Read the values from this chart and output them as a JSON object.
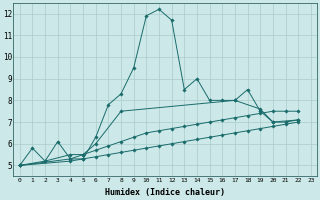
{
  "xlabel": "Humidex (Indice chaleur)",
  "bg_color": "#cce8e8",
  "grid_color": "#aacccc",
  "line_color": "#1a6b6b",
  "xlim": [
    -0.5,
    23.5
  ],
  "ylim": [
    4.5,
    12.5
  ],
  "yticks": [
    5,
    6,
    7,
    8,
    9,
    10,
    11,
    12
  ],
  "xticks": [
    0,
    1,
    2,
    3,
    4,
    5,
    6,
    7,
    8,
    9,
    10,
    11,
    12,
    13,
    14,
    15,
    16,
    17,
    18,
    19,
    20,
    21,
    22,
    23
  ],
  "series": [
    {
      "x": [
        0,
        1,
        2,
        3,
        4,
        5,
        6,
        7,
        8,
        9,
        10,
        11,
        12,
        13,
        14,
        15,
        16,
        17,
        18,
        19,
        20,
        21,
        22
      ],
      "y": [
        5.0,
        5.8,
        5.2,
        6.1,
        5.3,
        5.3,
        6.3,
        7.8,
        8.3,
        9.5,
        11.9,
        12.2,
        11.7,
        8.5,
        9.0,
        8.0,
        8.0,
        8.0,
        8.5,
        7.5,
        7.0,
        7.0,
        7.1
      ]
    },
    {
      "x": [
        0,
        2,
        4,
        5,
        6,
        8,
        17,
        19,
        20,
        22
      ],
      "y": [
        5.0,
        5.2,
        5.5,
        5.5,
        6.0,
        7.5,
        8.0,
        7.6,
        7.0,
        7.1
      ]
    },
    {
      "x": [
        0,
        4,
        5,
        6,
        7,
        8,
        9,
        10,
        11,
        12,
        13,
        14,
        15,
        16,
        17,
        18,
        19,
        20,
        21,
        22
      ],
      "y": [
        5.0,
        5.3,
        5.5,
        5.7,
        5.9,
        6.1,
        6.3,
        6.5,
        6.6,
        6.7,
        6.8,
        6.9,
        7.0,
        7.1,
        7.2,
        7.3,
        7.4,
        7.5,
        7.5,
        7.5
      ]
    },
    {
      "x": [
        0,
        4,
        5,
        6,
        7,
        8,
        9,
        10,
        11,
        12,
        13,
        14,
        15,
        16,
        17,
        18,
        19,
        20,
        21,
        22
      ],
      "y": [
        5.0,
        5.2,
        5.3,
        5.4,
        5.5,
        5.6,
        5.7,
        5.8,
        5.9,
        6.0,
        6.1,
        6.2,
        6.3,
        6.4,
        6.5,
        6.6,
        6.7,
        6.8,
        6.9,
        7.0
      ]
    }
  ]
}
